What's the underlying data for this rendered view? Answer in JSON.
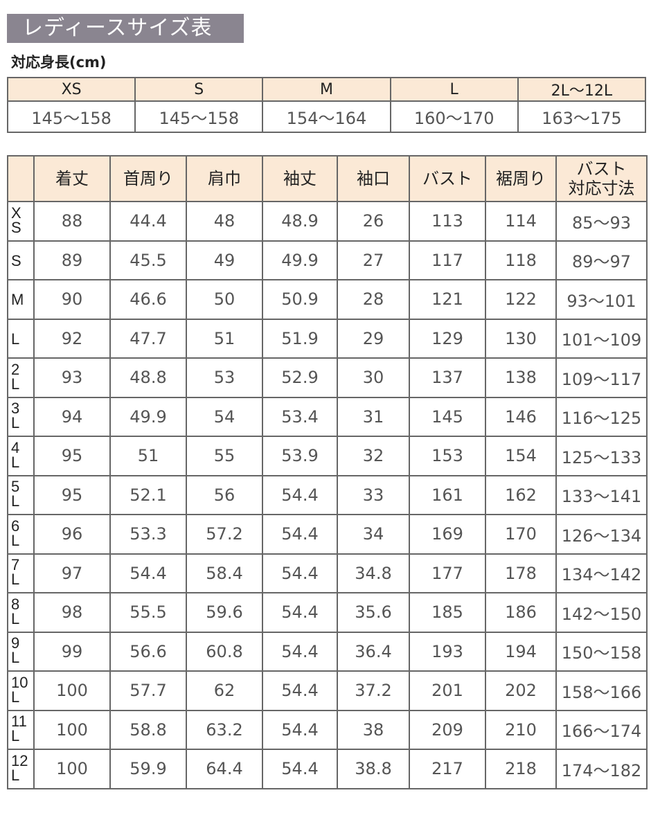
{
  "title": "レディースサイズ表",
  "height_section": {
    "label": "対応身長(cm)",
    "headers": [
      "XS",
      "S",
      "M",
      "L",
      "2L〜12L"
    ],
    "values": [
      "145〜158",
      "145〜158",
      "154〜164",
      "160〜170",
      "163〜175"
    ]
  },
  "main": {
    "headers": [
      "",
      "着丈",
      "首周り",
      "肩巾",
      "袖丈",
      "袖口",
      "バスト",
      "裾周り",
      "バスト\n対応寸法"
    ],
    "rows": [
      {
        "size": "XS",
        "values": [
          "88",
          "44.4",
          "48",
          "48.9",
          "26",
          "113",
          "114",
          "85〜93"
        ]
      },
      {
        "size": "S",
        "values": [
          "89",
          "45.5",
          "49",
          "49.9",
          "27",
          "117",
          "118",
          "89〜97"
        ]
      },
      {
        "size": "M",
        "values": [
          "90",
          "46.6",
          "50",
          "50.9",
          "28",
          "121",
          "122",
          "93〜101"
        ]
      },
      {
        "size": "L",
        "values": [
          "92",
          "47.7",
          "51",
          "51.9",
          "29",
          "129",
          "130",
          "101〜109"
        ]
      },
      {
        "size": "2L",
        "values": [
          "93",
          "48.8",
          "53",
          "52.9",
          "30",
          "137",
          "138",
          "109〜117"
        ]
      },
      {
        "size": "3L",
        "values": [
          "94",
          "49.9",
          "54",
          "53.4",
          "31",
          "145",
          "146",
          "116〜125"
        ]
      },
      {
        "size": "4L",
        "values": [
          "95",
          "51",
          "55",
          "53.9",
          "32",
          "153",
          "154",
          "125〜133"
        ]
      },
      {
        "size": "5L",
        "values": [
          "95",
          "52.1",
          "56",
          "54.4",
          "33",
          "161",
          "162",
          "133〜141"
        ]
      },
      {
        "size": "6L",
        "values": [
          "96",
          "53.3",
          "57.2",
          "54.4",
          "34",
          "169",
          "170",
          "126〜134"
        ]
      },
      {
        "size": "7L",
        "values": [
          "97",
          "54.4",
          "58.4",
          "54.4",
          "34.8",
          "177",
          "178",
          "134〜142"
        ]
      },
      {
        "size": "8L",
        "values": [
          "98",
          "55.5",
          "59.6",
          "54.4",
          "35.6",
          "185",
          "186",
          "142〜150"
        ]
      },
      {
        "size": "9L",
        "values": [
          "99",
          "56.6",
          "60.8",
          "54.4",
          "36.4",
          "193",
          "194",
          "150〜158"
        ]
      },
      {
        "size": "10L",
        "values": [
          "100",
          "57.7",
          "62",
          "54.4",
          "37.2",
          "201",
          "202",
          "158〜166"
        ]
      },
      {
        "size": "11L",
        "values": [
          "100",
          "58.8",
          "63.2",
          "54.4",
          "38",
          "209",
          "210",
          "166〜174"
        ]
      },
      {
        "size": "12L",
        "values": [
          "100",
          "59.9",
          "64.4",
          "54.4",
          "38.8",
          "217",
          "218",
          "174〜182"
        ]
      }
    ]
  },
  "colors": {
    "title_bg": "#8a8590",
    "header_bg": "#fbe9d6",
    "border": "#666666",
    "text": "#555555"
  }
}
